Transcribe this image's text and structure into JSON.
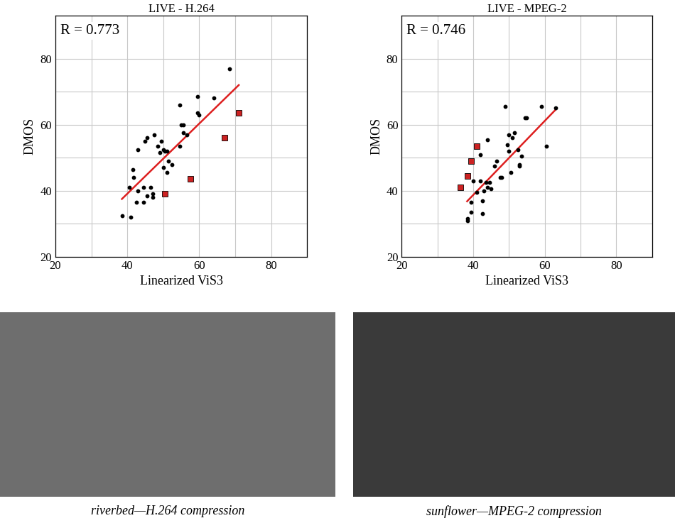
{
  "chart_data": [
    {
      "type": "scatter",
      "title": "LIVE - H.264",
      "x_label": "Linearized ViS3",
      "y_label": "DMOS",
      "annotation": "R = 0.773",
      "xlim": [
        20,
        90
      ],
      "ylim": [
        20,
        93
      ],
      "xticks": [
        20,
        40,
        60,
        80
      ],
      "yticks": [
        20,
        40,
        60,
        80
      ],
      "grid": true,
      "series": [
        {
          "type": "scatter",
          "color": "#000000",
          "marker": "circle",
          "x": [
            38.5,
            41,
            40.5,
            41.5,
            41.8,
            42.5,
            43,
            43,
            44.5,
            44.5,
            45,
            45.5,
            45.5,
            46.5,
            47,
            47,
            47.5,
            48.5,
            49,
            49.5,
            50,
            50,
            50.5,
            51,
            51,
            51.5,
            52.5,
            54.5,
            54.5,
            55,
            55.5,
            55.5,
            56.5,
            59.5,
            59.5,
            60,
            64,
            68.5
          ],
          "y": [
            32.5,
            32,
            41,
            46.5,
            44,
            36.5,
            40,
            52.5,
            36.5,
            41,
            55,
            56,
            38.5,
            41,
            38,
            39,
            57,
            53.5,
            51.5,
            55,
            47,
            52.5,
            52,
            45.5,
            52,
            49,
            48,
            53.5,
            66,
            60,
            60,
            57.5,
            57,
            68.5,
            63.5,
            63,
            68,
            77
          ]
        },
        {
          "type": "scatter",
          "color": "#cc2222",
          "marker": "square",
          "x": [
            50.5,
            57.5,
            67,
            71
          ],
          "y": [
            39,
            43.5,
            56,
            63.5
          ]
        },
        {
          "type": "line",
          "color": "#dd1f1f",
          "line_style": "solid",
          "x": [
            38.5,
            71
          ],
          "y": [
            37.5,
            72
          ]
        }
      ]
    },
    {
      "type": "scatter",
      "title": "LIVE - MPEG-2",
      "x_label": "Linearized ViS3",
      "y_label": "DMOS",
      "annotation": "R = 0.746",
      "xlim": [
        20,
        90
      ],
      "ylim": [
        20,
        93
      ],
      "xticks": [
        20,
        40,
        60,
        80
      ],
      "yticks": [
        20,
        40,
        60,
        80
      ],
      "grid": true,
      "series": [
        {
          "type": "scatter",
          "color": "#000000",
          "marker": "circle",
          "x": [
            38.5,
            38.5,
            39.5,
            39.5,
            40,
            41,
            42,
            42.5,
            42.5,
            42,
            43,
            43.5,
            44,
            44,
            44.5,
            45,
            46,
            46.5,
            47.5,
            48,
            49,
            49.5,
            50,
            50,
            50.5,
            51,
            51.5,
            52.5,
            53,
            53,
            53.5,
            54.5,
            55,
            59,
            60.5,
            63
          ],
          "y": [
            31,
            31.5,
            33.5,
            36.5,
            43,
            39.5,
            43,
            37,
            33,
            51,
            40,
            42.5,
            41,
            55.5,
            42.5,
            40.5,
            47.5,
            49,
            44,
            44,
            65.5,
            54,
            57,
            52,
            45.5,
            56,
            57.5,
            52.5,
            48,
            47.5,
            50.5,
            62,
            62,
            65.5,
            53.5,
            65
          ]
        },
        {
          "type": "scatter",
          "color": "#cc2222",
          "marker": "square",
          "x": [
            36.5,
            38.5,
            39.5,
            41
          ],
          "y": [
            41,
            44.5,
            49,
            53.5
          ]
        },
        {
          "type": "line",
          "color": "#dd1f1f",
          "line_style": "solid",
          "x": [
            38.3,
            63
          ],
          "y": [
            36.8,
            64.5
          ]
        }
      ]
    }
  ],
  "images": [
    {
      "caption": "riverbed—H.264 compression"
    },
    {
      "caption": "sunflower—MPEG-2 compression"
    }
  ]
}
